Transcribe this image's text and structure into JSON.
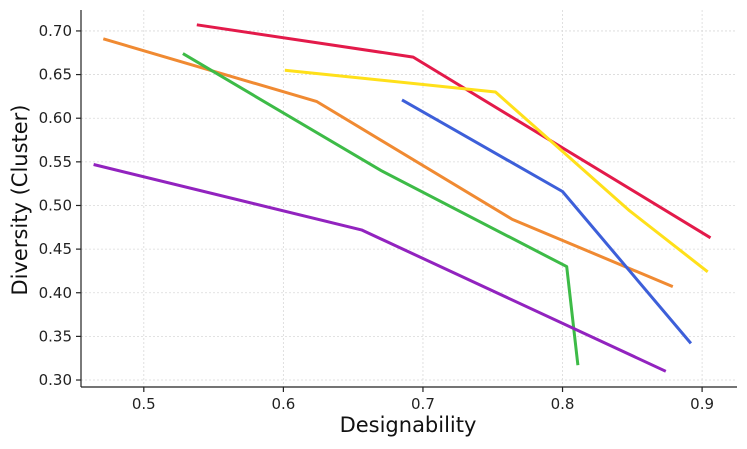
{
  "chart_data": {
    "type": "line",
    "title": "",
    "xlabel": "Designability",
    "ylabel": "Diversity (Cluster)",
    "xlim": [
      0.455,
      0.925
    ],
    "ylim": [
      0.292,
      0.724
    ],
    "xticks": [
      0.5,
      0.6,
      0.7,
      0.8,
      0.9
    ],
    "xtick_labels": [
      "0.5",
      "0.6",
      "0.7",
      "0.8",
      "0.9"
    ],
    "yticks": [
      0.3,
      0.35,
      0.4,
      0.45,
      0.5,
      0.55,
      0.6,
      0.65,
      0.7
    ],
    "ytick_labels": [
      "0.30",
      "0.35",
      "0.40",
      "0.45",
      "0.50",
      "0.55",
      "0.60",
      "0.65",
      "0.70"
    ],
    "grid": true,
    "legend": "none",
    "series": [
      {
        "color": "#e31a4a",
        "points": [
          [
            0.538,
            0.707
          ],
          [
            0.693,
            0.67
          ],
          [
            0.906,
            0.463
          ]
        ]
      },
      {
        "color": "#ffe01a",
        "points": [
          [
            0.601,
            0.655
          ],
          [
            0.752,
            0.63
          ],
          [
            0.848,
            0.494
          ],
          [
            0.904,
            0.424
          ]
        ]
      },
      {
        "color": "#f08a32",
        "points": [
          [
            0.471,
            0.691
          ],
          [
            0.624,
            0.619
          ],
          [
            0.764,
            0.484
          ],
          [
            0.879,
            0.407
          ]
        ]
      },
      {
        "color": "#3d5fd9",
        "points": [
          [
            0.685,
            0.621
          ],
          [
            0.8,
            0.516
          ],
          [
            0.892,
            0.342
          ]
        ]
      },
      {
        "color": "#3dbb47",
        "points": [
          [
            0.528,
            0.674
          ],
          [
            0.67,
            0.54
          ],
          [
            0.803,
            0.43
          ],
          [
            0.811,
            0.317
          ]
        ]
      },
      {
        "color": "#9223bf",
        "points": [
          [
            0.464,
            0.547
          ],
          [
            0.656,
            0.472
          ],
          [
            0.874,
            0.31
          ]
        ]
      }
    ]
  }
}
